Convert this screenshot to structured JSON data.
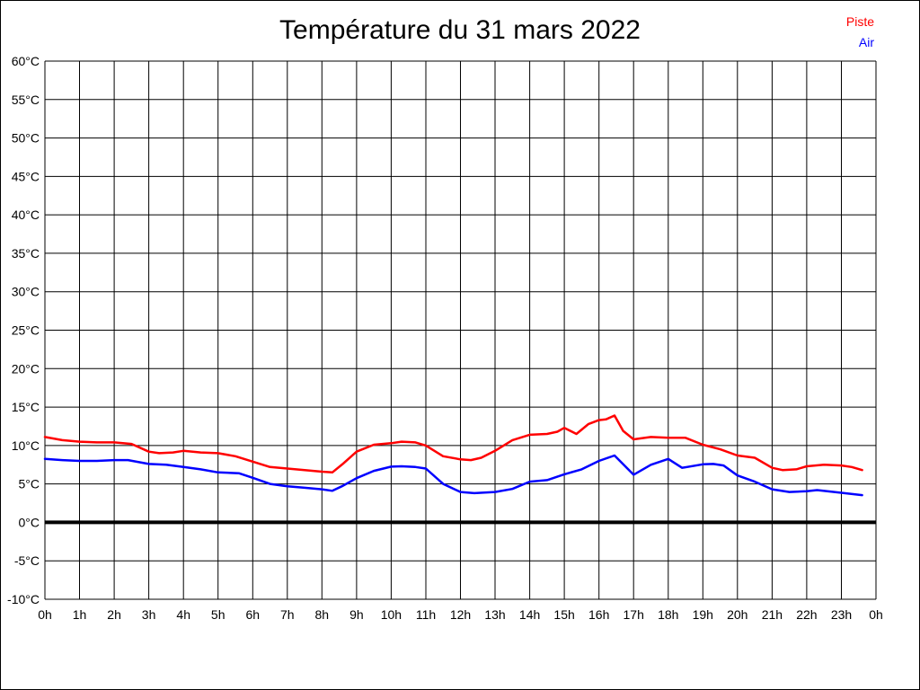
{
  "chart_data": {
    "type": "line",
    "title": "Température du 31 mars 2022",
    "xlabel": "",
    "ylabel": "",
    "grid": "on",
    "legend_position": "top-right",
    "zero_line_bold": true,
    "x": {
      "unit": "h",
      "min": 0,
      "max": 24,
      "tick_labels": [
        "0h",
        "1h",
        "2h",
        "3h",
        "4h",
        "5h",
        "6h",
        "7h",
        "8h",
        "9h",
        "10h",
        "11h",
        "12h",
        "13h",
        "14h",
        "15h",
        "16h",
        "17h",
        "18h",
        "19h",
        "20h",
        "21h",
        "22h",
        "23h",
        "0h"
      ]
    },
    "y": {
      "unit": "°C",
      "min": -10,
      "max": 60,
      "step": 5,
      "tick_labels": [
        "60°C",
        "55°C",
        "50°C",
        "45°C",
        "40°C",
        "35°C",
        "30°C",
        "25°C",
        "20°C",
        "15°C",
        "10°C",
        "5°C",
        "0°C",
        "-5°C",
        "-10°C"
      ]
    },
    "series": [
      {
        "name": "Piste",
        "color": "#ff0000",
        "points_h_degC": [
          [
            0,
            11.1
          ],
          [
            0.5,
            10.7
          ],
          [
            1,
            10.5
          ],
          [
            1.5,
            10.4
          ],
          [
            2,
            10.4
          ],
          [
            2.5,
            10.2
          ],
          [
            3,
            9.2
          ],
          [
            3.3,
            9.0
          ],
          [
            3.7,
            9.1
          ],
          [
            4,
            9.3
          ],
          [
            4.5,
            9.1
          ],
          [
            5,
            9.0
          ],
          [
            5.5,
            8.6
          ],
          [
            6,
            7.9
          ],
          [
            6.5,
            7.2
          ],
          [
            7,
            7.0
          ],
          [
            7.5,
            6.8
          ],
          [
            8,
            6.6
          ],
          [
            8.3,
            6.5
          ],
          [
            8.6,
            7.6
          ],
          [
            9,
            9.2
          ],
          [
            9.5,
            10.1
          ],
          [
            10,
            10.3
          ],
          [
            10.3,
            10.5
          ],
          [
            10.7,
            10.4
          ],
          [
            11,
            10.0
          ],
          [
            11.5,
            8.6
          ],
          [
            12,
            8.2
          ],
          [
            12.3,
            8.1
          ],
          [
            12.6,
            8.4
          ],
          [
            13,
            9.3
          ],
          [
            13.5,
            10.7
          ],
          [
            14,
            11.4
          ],
          [
            14.5,
            11.5
          ],
          [
            14.8,
            11.8
          ],
          [
            15,
            12.3
          ],
          [
            15.35,
            11.5
          ],
          [
            15.7,
            12.8
          ],
          [
            16,
            13.3
          ],
          [
            16.2,
            13.4
          ],
          [
            16.45,
            13.9
          ],
          [
            16.7,
            11.9
          ],
          [
            17,
            10.8
          ],
          [
            17.5,
            11.1
          ],
          [
            18,
            11.0
          ],
          [
            18.5,
            11.0
          ],
          [
            19,
            10.1
          ],
          [
            19.5,
            9.5
          ],
          [
            20,
            8.7
          ],
          [
            20.5,
            8.4
          ],
          [
            21,
            7.1
          ],
          [
            21.3,
            6.8
          ],
          [
            21.7,
            6.9
          ],
          [
            22,
            7.3
          ],
          [
            22.5,
            7.5
          ],
          [
            23,
            7.4
          ],
          [
            23.3,
            7.2
          ],
          [
            23.6,
            6.8
          ]
        ]
      },
      {
        "name": "Air",
        "color": "#0000ff",
        "points_h_degC": [
          [
            0,
            8.25
          ],
          [
            0.5,
            8.1
          ],
          [
            1,
            8.0
          ],
          [
            1.5,
            8.0
          ],
          [
            2,
            8.1
          ],
          [
            2.4,
            8.1
          ],
          [
            3,
            7.6
          ],
          [
            3.5,
            7.5
          ],
          [
            4,
            7.2
          ],
          [
            4.5,
            6.9
          ],
          [
            5,
            6.5
          ],
          [
            5.6,
            6.4
          ],
          [
            6,
            5.8
          ],
          [
            6.5,
            5.0
          ],
          [
            7,
            4.7
          ],
          [
            7.5,
            4.5
          ],
          [
            8,
            4.3
          ],
          [
            8.3,
            4.1
          ],
          [
            8.6,
            4.75
          ],
          [
            9,
            5.75
          ],
          [
            9.5,
            6.7
          ],
          [
            10,
            7.25
          ],
          [
            10.3,
            7.3
          ],
          [
            10.7,
            7.2
          ],
          [
            11,
            7.0
          ],
          [
            11.5,
            5.0
          ],
          [
            12,
            3.95
          ],
          [
            12.4,
            3.8
          ],
          [
            13,
            3.95
          ],
          [
            13.5,
            4.35
          ],
          [
            14,
            5.3
          ],
          [
            14.5,
            5.5
          ],
          [
            15,
            6.25
          ],
          [
            15.5,
            6.9
          ],
          [
            16,
            8.0
          ],
          [
            16.45,
            8.7
          ],
          [
            17,
            6.2
          ],
          [
            17.5,
            7.5
          ],
          [
            18,
            8.25
          ],
          [
            18.4,
            7.1
          ],
          [
            19,
            7.55
          ],
          [
            19.3,
            7.6
          ],
          [
            19.6,
            7.4
          ],
          [
            20,
            6.1
          ],
          [
            20.5,
            5.3
          ],
          [
            21,
            4.3
          ],
          [
            21.5,
            3.95
          ],
          [
            22,
            4.05
          ],
          [
            22.3,
            4.2
          ],
          [
            23,
            3.85
          ],
          [
            23.6,
            3.55
          ]
        ]
      }
    ]
  }
}
